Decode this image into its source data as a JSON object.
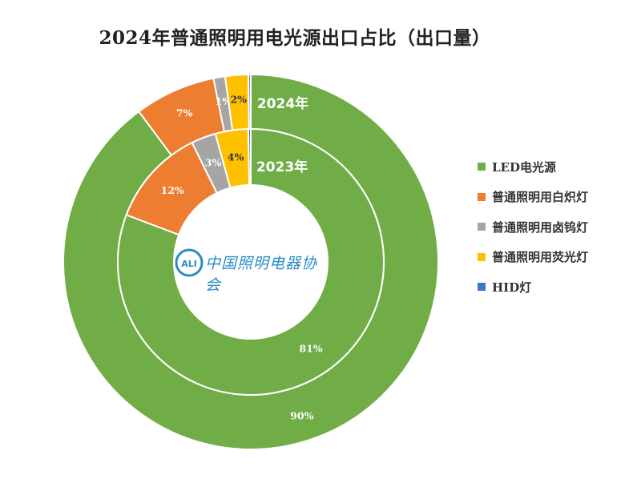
{
  "chart_data": {
    "type": "pie",
    "title": "2024年普通照明用电光源出口占比（出口量）",
    "categories": [
      "LED电光源",
      "普通照明用白炽灯",
      "普通照明用卤钨灯",
      "普通照明用荧光灯",
      "HID灯"
    ],
    "colors": [
      "#70ad47",
      "#ed7d31",
      "#a5a5a5",
      "#ffc000",
      "#4472c4"
    ],
    "series": [
      {
        "name": "2024年",
        "values": [
          90,
          7,
          1,
          2,
          0.2
        ],
        "labels": [
          "90%",
          "7%",
          "1%",
          "2%",
          ""
        ]
      },
      {
        "name": "2023年",
        "values": [
          81,
          12,
          3,
          4,
          0.3
        ],
        "labels": [
          "81%",
          "12%",
          "3%",
          "4%",
          ""
        ]
      }
    ],
    "legend": "right"
  },
  "logo": {
    "text": "中国照明电器协会",
    "mark": "CALI"
  }
}
